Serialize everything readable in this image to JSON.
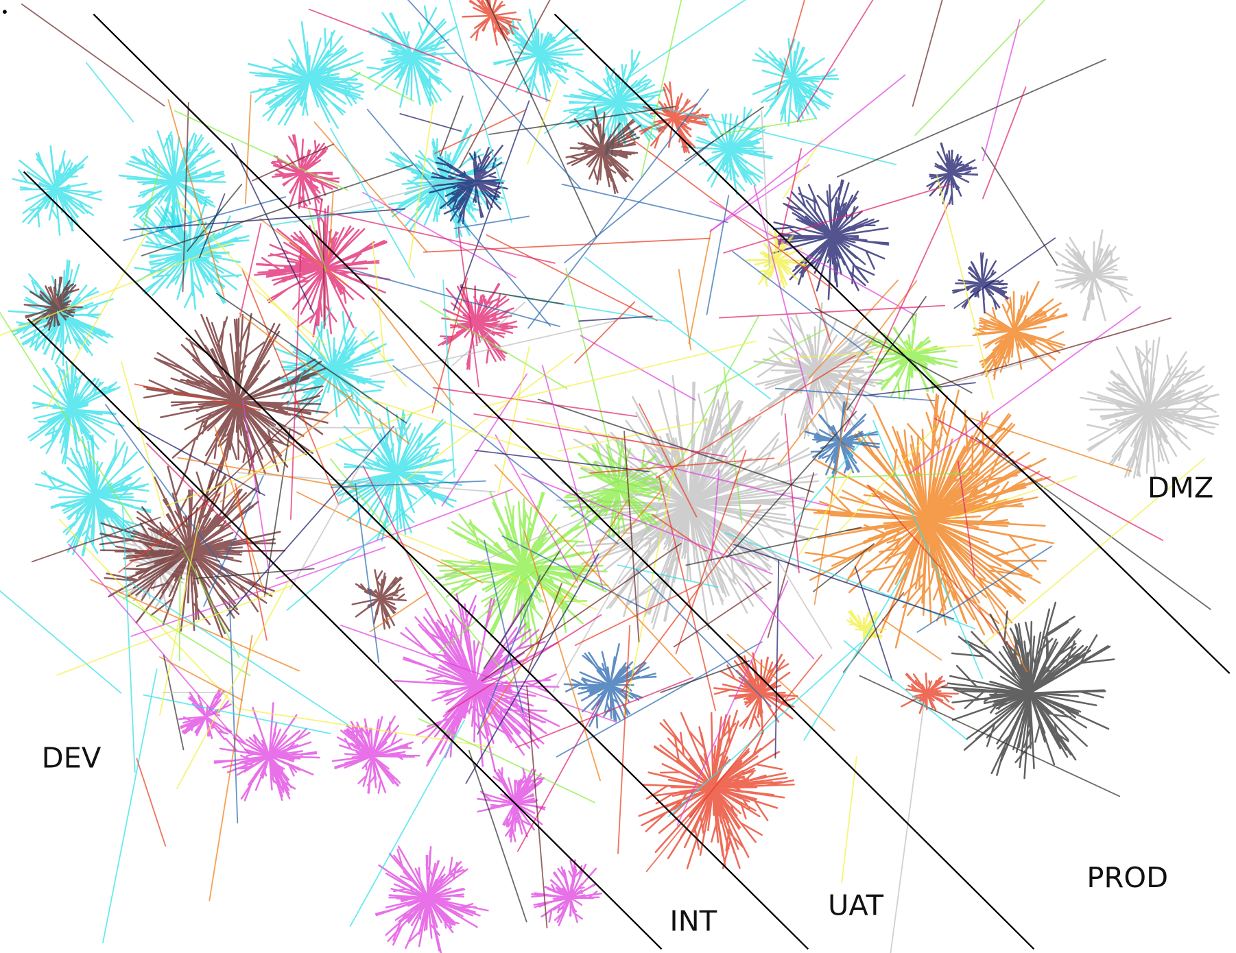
{
  "zones": [
    {
      "label": "DEV"
    },
    {
      "label": "INT"
    },
    {
      "label": "UAT"
    },
    {
      "label": "PROD"
    },
    {
      "label": "DMZ"
    }
  ]
}
